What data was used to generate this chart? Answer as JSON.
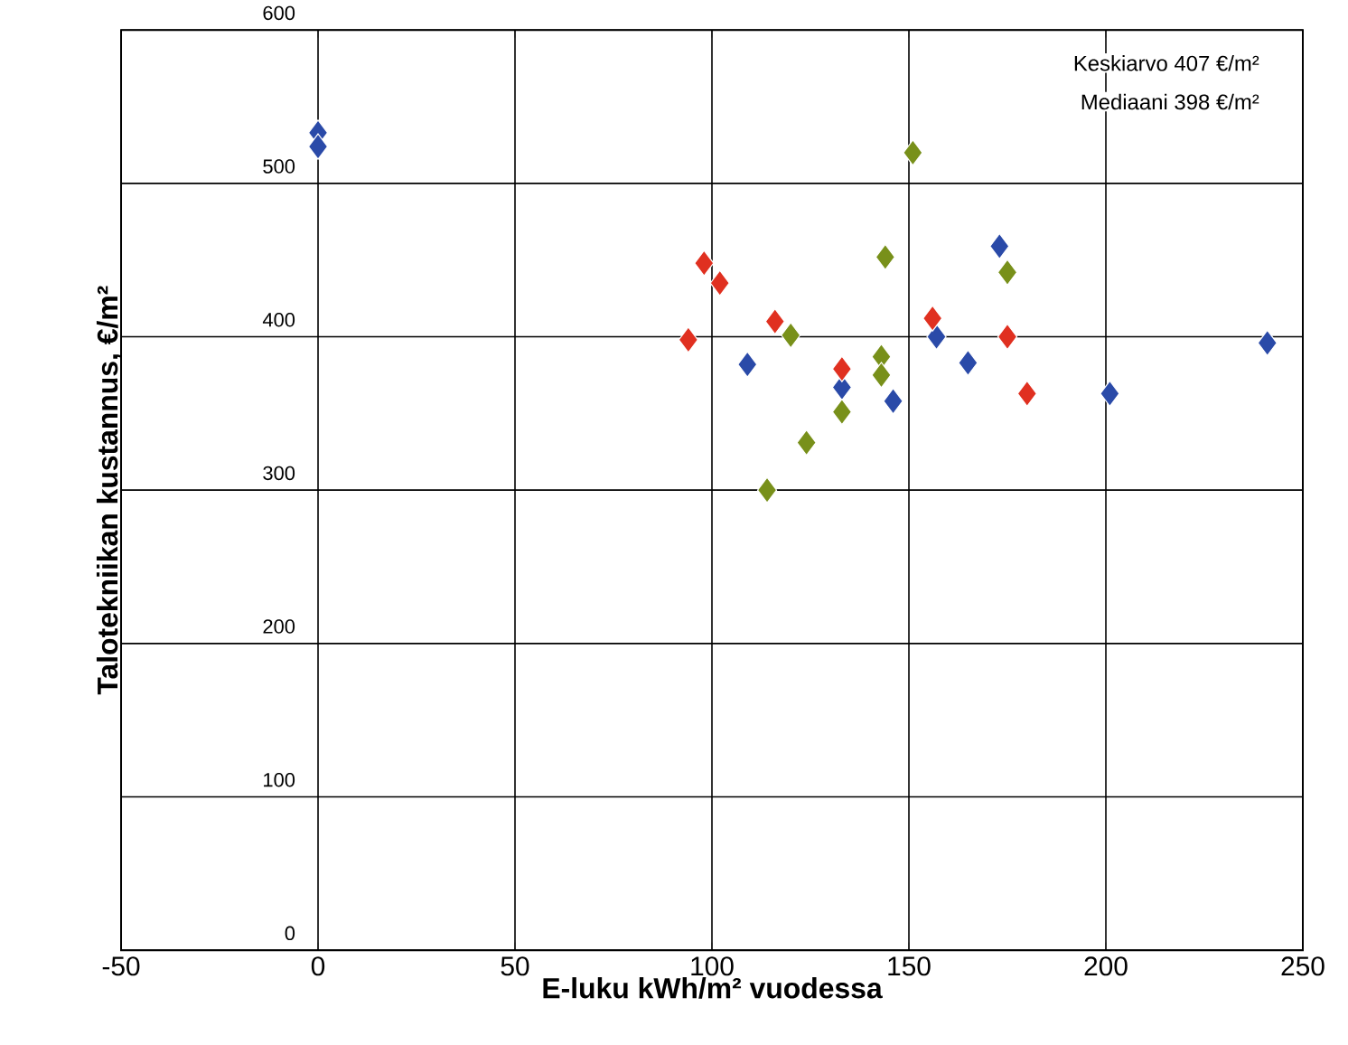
{
  "chart_data": {
    "type": "scatter",
    "xlabel": "E-luku kWh/m² vuodessa",
    "ylabel": "Talotekniikan  kustannus, €/m²",
    "annotations": [
      "Keskiarvo 407 €/m²",
      "Mediaani 398 €/m²"
    ],
    "xlim": [
      -50,
      250
    ],
    "ylim": [
      0,
      600
    ],
    "xticks": [
      -50,
      0,
      50,
      100,
      150,
      200,
      250
    ],
    "yticks": [
      0,
      100,
      200,
      300,
      400,
      500,
      600
    ],
    "grid": true,
    "marker": "diamond",
    "series": [
      {
        "color": "#2a4aa8",
        "x": [
          0,
          0,
          173,
          157,
          109,
          133,
          146,
          165,
          201,
          241
        ],
        "values": [
          533,
          524,
          459,
          400,
          382,
          367,
          358,
          383,
          363,
          396
        ]
      },
      {
        "color": "#e03020",
        "x": [
          98,
          102,
          94,
          116,
          133,
          156,
          175,
          180
        ],
        "values": [
          448,
          435,
          398,
          410,
          379,
          412,
          400,
          363
        ]
      },
      {
        "color": "#78901a",
        "x": [
          151,
          144,
          175,
          120,
          143,
          143,
          133,
          124,
          114
        ],
        "values": [
          520,
          452,
          442,
          401,
          387,
          375,
          351,
          331,
          300
        ]
      }
    ]
  }
}
